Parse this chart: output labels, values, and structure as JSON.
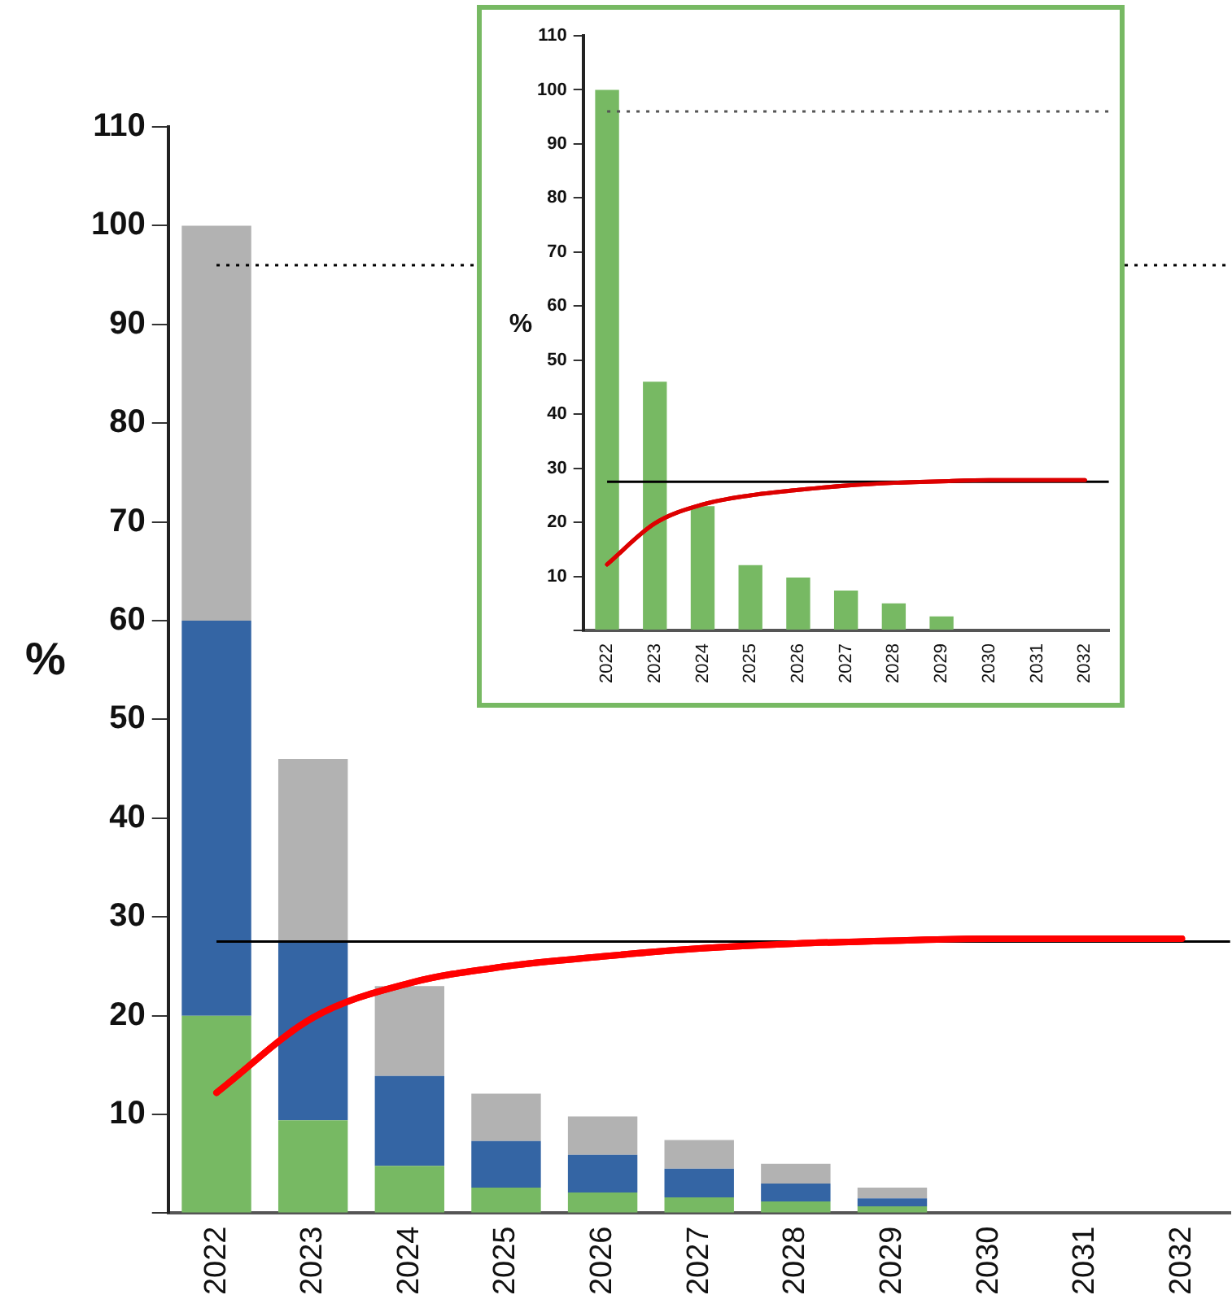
{
  "chart_data": [
    {
      "type": "bar",
      "stacked": true,
      "ylabel": "%",
      "legend": false,
      "grid": false,
      "categories": [
        "2022",
        "2023",
        "2024",
        "2025",
        "2026",
        "2027",
        "2028",
        "2029",
        "2030",
        "2031",
        "2032"
      ],
      "series": [
        {
          "color": "#77b963",
          "values": [
            20,
            9.4,
            4.8,
            2.6,
            2.1,
            1.6,
            1.2,
            0.7,
            null,
            null,
            null
          ]
        },
        {
          "color": "#3465a4",
          "values": [
            40,
            18.1,
            9.1,
            4.7,
            3.8,
            2.9,
            1.8,
            0.8,
            null,
            null,
            null
          ]
        },
        {
          "color": "#b2b2b2",
          "values": [
            40,
            18.5,
            9.1,
            4.8,
            3.9,
            2.9,
            2.0,
            1.1,
            null,
            null,
            null
          ]
        },
        {
          "type": "line",
          "color": "#ff0000",
          "values": [
            12.2,
            19.8,
            23.3,
            25.0,
            26.0,
            26.8,
            27.3,
            27.6,
            27.8,
            27.8,
            27.8
          ]
        }
      ],
      "ylim": [
        0,
        110
      ],
      "yticks": [
        {
          "value": 0,
          "label": null
        },
        10,
        20,
        30,
        40,
        50,
        60,
        70,
        80,
        90,
        100,
        110
      ],
      "ref_lines": [
        {
          "axis": "y",
          "value": 27.5,
          "color": "#000000",
          "line_style": "solid"
        },
        {
          "axis": "y",
          "value": 96,
          "color": "#000000",
          "line_style": "dotted"
        }
      ]
    },
    {
      "type": "bar",
      "ylabel": "%",
      "legend": false,
      "grid": false,
      "categories": [
        "2022",
        "2023",
        "2024",
        "2025",
        "2026",
        "2027",
        "2028",
        "2029",
        "2030",
        "2031",
        "2032"
      ],
      "series": [
        {
          "color": "#77b963",
          "values": [
            100,
            46,
            23,
            12.1,
            9.8,
            7.4,
            5.0,
            2.6,
            null,
            null,
            null
          ]
        },
        {
          "type": "line",
          "color": "#dd0000",
          "values": [
            12.2,
            19.8,
            23.3,
            25.0,
            26.0,
            26.8,
            27.3,
            27.6,
            27.8,
            27.8,
            27.8
          ]
        }
      ],
      "ylim": [
        0,
        110
      ],
      "yticks": [
        {
          "value": 0,
          "label": null
        },
        10,
        20,
        30,
        40,
        50,
        60,
        70,
        80,
        90,
        100,
        110
      ],
      "ref_lines": [
        {
          "axis": "y",
          "value": 27.5,
          "color": "#000000",
          "line_style": "solid"
        },
        {
          "axis": "y",
          "value": 96,
          "color": "#555555",
          "line_style": "dotted"
        }
      ]
    }
  ]
}
